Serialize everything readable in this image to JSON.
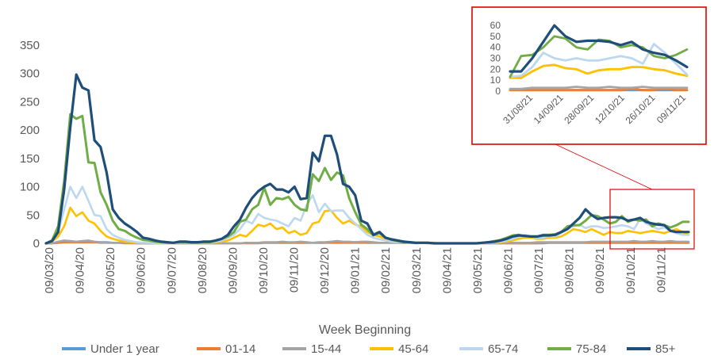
{
  "chart_data": {
    "type": "line",
    "title": "",
    "xlabel": "Week Beginning",
    "ylabel": "",
    "ylim": [
      0,
      350
    ],
    "yticks": [
      0,
      50,
      100,
      150,
      200,
      250,
      300,
      350
    ],
    "grid": false,
    "legend_position": "bottom",
    "x_tick_labels": [
      "09/03/20",
      "09/04/20",
      "09/05/20",
      "09/06/20",
      "09/07/20",
      "09/08/20",
      "09/09/20",
      "09/10/20",
      "09/11/20",
      "09/12/20",
      "09/01/21",
      "09/02/21",
      "09/03/21",
      "09/04/21",
      "09/05/21",
      "09/06/21",
      "09/07/21",
      "09/08/21",
      "09/09/21",
      "09/10/21",
      "09/11/21"
    ],
    "series": [
      {
        "name": "Under 1 year",
        "color": "#5b9bd5",
        "values": [
          0,
          0,
          1,
          2,
          3,
          2,
          2,
          3,
          2,
          2,
          2,
          1,
          1,
          1,
          1,
          0,
          0,
          0,
          0,
          0,
          0,
          0,
          0,
          0,
          0,
          0,
          0,
          0,
          0,
          0,
          0,
          0,
          0,
          1,
          1,
          1,
          1,
          1,
          1,
          1,
          1,
          1,
          1,
          1,
          1,
          1,
          1,
          2,
          2,
          2,
          2,
          2,
          2,
          1,
          1,
          1,
          1,
          1,
          1,
          1,
          1,
          1,
          1,
          1,
          0,
          0,
          0,
          0,
          0,
          0,
          0,
          0,
          0,
          0,
          0,
          0,
          0,
          0,
          0,
          0,
          0,
          0,
          0,
          1,
          1,
          1,
          1,
          1,
          1,
          1,
          1,
          1,
          1,
          1,
          1,
          1,
          1,
          1,
          1,
          1,
          1,
          1,
          1,
          1,
          1,
          1,
          1
        ]
      },
      {
        "name": "01-14",
        "color": "#ed7d31",
        "values": [
          0,
          0,
          1,
          2,
          2,
          2,
          2,
          2,
          2,
          1,
          1,
          1,
          1,
          0,
          0,
          0,
          0,
          0,
          0,
          0,
          0,
          0,
          0,
          0,
          0,
          0,
          0,
          0,
          0,
          0,
          0,
          0,
          0,
          0,
          0,
          0,
          1,
          1,
          1,
          1,
          1,
          1,
          1,
          1,
          1,
          1,
          1,
          1,
          1,
          1,
          1,
          1,
          1,
          1,
          1,
          1,
          1,
          1,
          1,
          1,
          1,
          1,
          1,
          0,
          0,
          0,
          0,
          0,
          0,
          0,
          0,
          0,
          0,
          0,
          0,
          0,
          0,
          0,
          0,
          0,
          0,
          0,
          1,
          1,
          1,
          1,
          1,
          1,
          1,
          1,
          1,
          1,
          1,
          1,
          1,
          1,
          1,
          1,
          1,
          1,
          2,
          1,
          1,
          2,
          1,
          1,
          1
        ]
      },
      {
        "name": "15-44",
        "color": "#a5a5a5",
        "values": [
          0,
          0,
          3,
          5,
          4,
          3,
          4,
          5,
          3,
          2,
          1,
          1,
          1,
          1,
          1,
          0,
          0,
          0,
          0,
          0,
          0,
          0,
          0,
          0,
          0,
          0,
          0,
          0,
          0,
          0,
          0,
          0,
          0,
          1,
          1,
          1,
          2,
          2,
          2,
          3,
          2,
          2,
          3,
          2,
          1,
          2,
          2,
          3,
          4,
          3,
          3,
          2,
          3,
          3,
          2,
          1,
          1,
          1,
          1,
          1,
          1,
          0,
          1,
          1,
          0,
          0,
          0,
          0,
          0,
          0,
          0,
          0,
          0,
          0,
          0,
          0,
          1,
          1,
          1,
          1,
          1,
          2,
          2,
          2,
          2,
          2,
          2,
          2,
          2,
          2,
          3,
          3,
          3,
          3,
          3,
          3,
          3,
          4,
          3,
          3,
          4,
          3,
          3,
          4,
          3,
          3,
          3
        ]
      },
      {
        "name": "45-64",
        "color": "#ffc000",
        "values": [
          0,
          3,
          12,
          30,
          63,
          48,
          55,
          40,
          35,
          22,
          12,
          8,
          5,
          3,
          2,
          1,
          1,
          1,
          1,
          0,
          0,
          0,
          1,
          1,
          0,
          0,
          1,
          1,
          2,
          3,
          5,
          10,
          15,
          12,
          22,
          33,
          30,
          35,
          25,
          28,
          18,
          22,
          15,
          18,
          35,
          38,
          57,
          58,
          45,
          35,
          40,
          33,
          30,
          20,
          15,
          12,
          8,
          5,
          3,
          2,
          2,
          1,
          1,
          1,
          1,
          0,
          0,
          0,
          0,
          0,
          0,
          0,
          0,
          1,
          1,
          2,
          3,
          5,
          8,
          10,
          10,
          8,
          8,
          10,
          10,
          12,
          18,
          25,
          23,
          20,
          25,
          20,
          15,
          20,
          18,
          18,
          22,
          20,
          18,
          20,
          22,
          20,
          18,
          22,
          25,
          20,
          15
        ]
      },
      {
        "name": "65-74",
        "color": "#bdd7ee",
        "values": [
          0,
          5,
          20,
          60,
          100,
          80,
          100,
          75,
          50,
          48,
          25,
          15,
          10,
          6,
          4,
          2,
          1,
          1,
          0,
          0,
          0,
          0,
          1,
          1,
          0,
          0,
          1,
          1,
          3,
          5,
          10,
          15,
          25,
          40,
          35,
          52,
          45,
          42,
          40,
          35,
          30,
          45,
          40,
          68,
          85,
          55,
          70,
          57,
          58,
          58,
          45,
          35,
          25,
          15,
          10,
          7,
          5,
          3,
          2,
          2,
          1,
          1,
          1,
          0,
          0,
          0,
          0,
          0,
          0,
          0,
          0,
          0,
          0,
          1,
          2,
          3,
          5,
          8,
          12,
          15,
          12,
          10,
          10,
          12,
          12,
          18,
          25,
          30,
          33,
          27,
          30,
          30,
          27,
          28,
          30,
          32,
          30,
          25,
          43,
          35,
          30,
          25,
          28,
          22,
          18,
          15,
          15
        ]
      },
      {
        "name": "75-84",
        "color": "#70ad47",
        "values": [
          0,
          5,
          30,
          110,
          228,
          220,
          225,
          143,
          142,
          90,
          68,
          40,
          25,
          22,
          15,
          10,
          6,
          5,
          3,
          2,
          1,
          1,
          2,
          2,
          1,
          1,
          2,
          2,
          5,
          8,
          12,
          20,
          38,
          42,
          60,
          68,
          98,
          68,
          80,
          78,
          82,
          68,
          60,
          58,
          122,
          110,
          133,
          112,
          125,
          120,
          80,
          55,
          33,
          25,
          14,
          18,
          10,
          6,
          4,
          2,
          2,
          1,
          1,
          1,
          0,
          0,
          0,
          0,
          0,
          0,
          0,
          0,
          1,
          2,
          4,
          6,
          10,
          14,
          15,
          13,
          12,
          12,
          15,
          15,
          16,
          20,
          30,
          32,
          32,
          40,
          50,
          48,
          42,
          35,
          38,
          48,
          38,
          42,
          40,
          42,
          30,
          35,
          32,
          28,
          32,
          38,
          38
        ]
      },
      {
        "name": "85+",
        "color": "#1f4e79",
        "values": [
          0,
          4,
          20,
          95,
          205,
          298,
          275,
          270,
          182,
          170,
          125,
          60,
          45,
          35,
          28,
          20,
          10,
          8,
          5,
          3,
          2,
          1,
          3,
          3,
          2,
          2,
          3,
          3,
          5,
          8,
          15,
          30,
          42,
          63,
          80,
          92,
          100,
          105,
          95,
          95,
          90,
          100,
          78,
          80,
          160,
          145,
          190,
          190,
          157,
          105,
          100,
          85,
          40,
          35,
          15,
          20,
          10,
          7,
          5,
          3,
          2,
          1,
          1,
          1,
          0,
          0,
          0,
          0,
          0,
          0,
          0,
          0,
          1,
          2,
          3,
          5,
          8,
          12,
          14,
          13,
          12,
          12,
          14,
          14,
          15,
          20,
          25,
          35,
          45,
          60,
          50,
          43,
          45,
          46,
          46,
          45,
          40,
          42,
          45,
          38,
          35,
          33,
          32,
          22,
          20,
          20,
          20
        ]
      }
    ],
    "inset": {
      "ylim": [
        0,
        60
      ],
      "yticks": [
        0,
        10,
        20,
        30,
        40,
        50,
        60
      ],
      "x_tick_labels": [
        "31/08/21",
        "14/09/21",
        "28/09/21",
        "12/10/21",
        "26/10/21",
        "09/11/21"
      ],
      "series": [
        {
          "name": "Under 1 year",
          "values": [
            1,
            1,
            1,
            1,
            1,
            1,
            1,
            1,
            1,
            1,
            1,
            1,
            1,
            1,
            1,
            1,
            1
          ]
        },
        {
          "name": "01-14",
          "values": [
            1,
            1,
            1,
            1,
            1,
            1,
            1,
            1,
            1,
            1,
            1,
            2,
            1,
            1,
            2,
            1,
            1
          ]
        },
        {
          "name": "15-44",
          "values": [
            2,
            2,
            3,
            3,
            3,
            3,
            4,
            3,
            3,
            4,
            3,
            3,
            4,
            3,
            3,
            3,
            3
          ]
        },
        {
          "name": "45-64",
          "values": [
            12,
            12,
            18,
            23,
            24,
            21,
            20,
            16,
            19,
            20,
            20,
            22,
            22,
            20,
            19,
            16,
            14
          ]
        },
        {
          "name": "65-74",
          "values": [
            13,
            14,
            22,
            35,
            30,
            28,
            30,
            28,
            28,
            30,
            32,
            30,
            25,
            43,
            35,
            25,
            15
          ]
        },
        {
          "name": "75-84",
          "values": [
            13,
            32,
            33,
            40,
            50,
            48,
            40,
            38,
            47,
            46,
            40,
            42,
            40,
            32,
            30,
            33,
            38
          ]
        },
        {
          "name": "85+",
          "values": [
            18,
            18,
            30,
            45,
            60,
            50,
            45,
            46,
            46,
            45,
            42,
            45,
            38,
            35,
            33,
            28,
            22
          ]
        }
      ]
    }
  }
}
